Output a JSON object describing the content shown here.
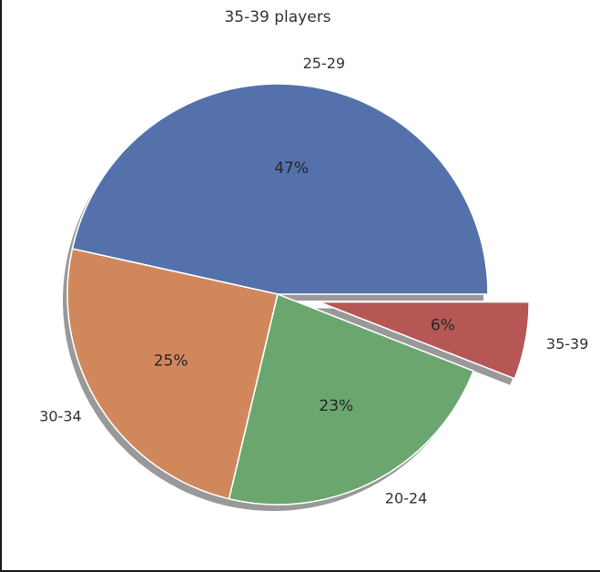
{
  "chart_data": {
    "type": "pie",
    "title": "35-39 players",
    "categories": [
      "25-29",
      "30-34",
      "20-24",
      "35-39"
    ],
    "values": [
      47,
      25,
      23,
      6
    ],
    "value_labels": [
      "47%",
      "25%",
      "23%",
      "6%"
    ],
    "colors": [
      "#5471ab",
      "#d1875c",
      "#6aa66e",
      "#b65756"
    ],
    "exploded": [
      "35-39"
    ],
    "shadow": true,
    "start_angle_deg": 0,
    "direction": "counterclockwise",
    "legend": "none"
  }
}
